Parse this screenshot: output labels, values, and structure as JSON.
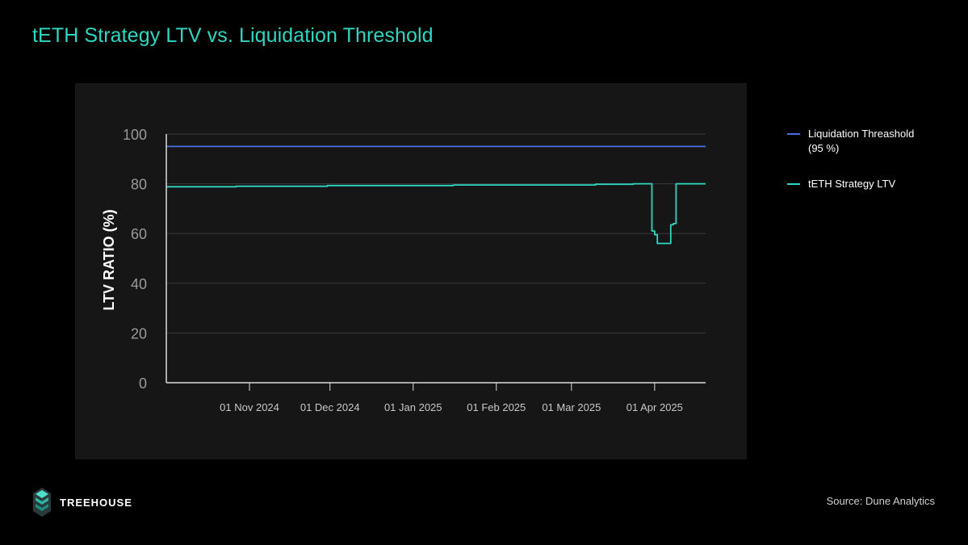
{
  "header": {
    "title": "tETH Strategy LTV vs. Liquidation Threshold"
  },
  "colors": {
    "title": "#2fd6c0",
    "background": "#000000",
    "panel": "#161616",
    "threshold_line": "#4a6fe0",
    "ltv_line": "#2fd6c0",
    "axis": "#dcdcdc",
    "grid": "#3a3a3a",
    "tick_text": "#9a9a9a",
    "x_tick_text": "#c8c8c8"
  },
  "legend": {
    "items": [
      {
        "label": "Liquidation Threashold",
        "sub": "(95 %)",
        "color": "#4a6fe0"
      },
      {
        "label": "tETH Strategy LTV",
        "sub": "",
        "color": "#2fd6c0"
      }
    ]
  },
  "footer": {
    "brand": "TREEHOUSE",
    "source": "Source: Dune Analytics",
    "logo_icon": "treehouse-logo-icon"
  },
  "chart_data": {
    "type": "line",
    "title": "",
    "xlabel": "",
    "ylabel": "LTV RATIO (%)",
    "xlim": [
      "2024-10-01",
      "2025-04-20"
    ],
    "ylim": [
      0,
      100
    ],
    "yticks": [
      0,
      20,
      40,
      60,
      80,
      100
    ],
    "xticks": [
      {
        "date": "2024-11-01",
        "label": "01 Nov 2024"
      },
      {
        "date": "2024-12-01",
        "label": "01 Dec 2024"
      },
      {
        "date": "2025-01-01",
        "label": "01 Jan 2025"
      },
      {
        "date": "2025-02-01",
        "label": "01 Feb 2025"
      },
      {
        "date": "2025-03-01",
        "label": "01 Mar 2025"
      },
      {
        "date": "2025-04-01",
        "label": "01 Apr 2025"
      }
    ],
    "grid": true,
    "legend_position": "right",
    "series": [
      {
        "name": "Liquidation Threashold",
        "style": "linear",
        "color": "#4a6fe0",
        "points": [
          {
            "x": "2024-10-01",
            "y": 95
          },
          {
            "x": "2025-04-20",
            "y": 95
          }
        ]
      },
      {
        "name": "tETH Strategy LTV",
        "style": "step",
        "color": "#2fd6c0",
        "points": [
          {
            "x": "2024-10-01",
            "y": 78.8
          },
          {
            "x": "2024-10-27",
            "y": 79.0
          },
          {
            "x": "2024-11-30",
            "y": 79.3
          },
          {
            "x": "2025-01-16",
            "y": 79.5
          },
          {
            "x": "2025-03-10",
            "y": 79.8
          },
          {
            "x": "2025-03-24",
            "y": 80.0
          },
          {
            "x": "2025-03-30",
            "y": 80.0
          },
          {
            "x": "2025-03-31",
            "y": 61.0
          },
          {
            "x": "2025-04-01",
            "y": 59.5
          },
          {
            "x": "2025-04-02",
            "y": 56.0
          },
          {
            "x": "2025-04-07",
            "y": 63.5
          },
          {
            "x": "2025-04-08",
            "y": 64.0
          },
          {
            "x": "2025-04-09",
            "y": 80.0
          },
          {
            "x": "2025-04-20",
            "y": 80.0
          }
        ]
      }
    ]
  }
}
